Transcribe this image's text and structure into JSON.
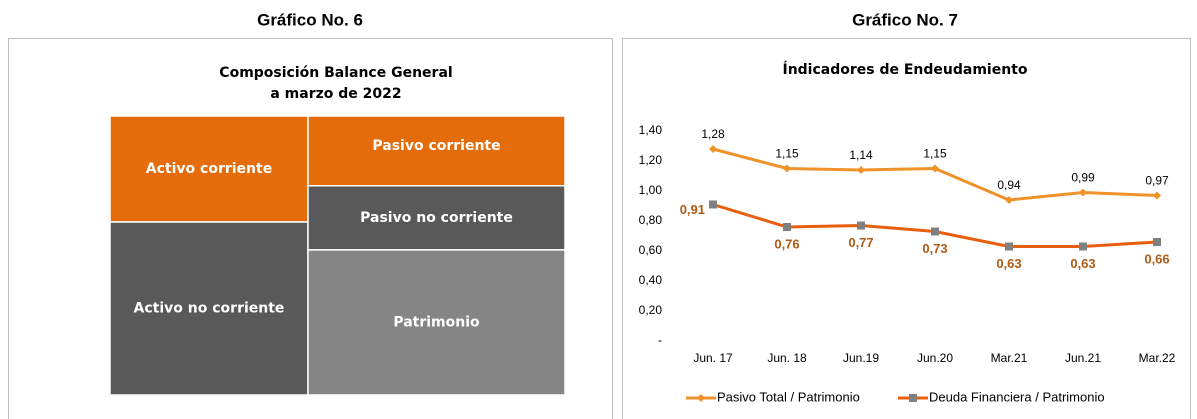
{
  "chart_data": [
    {
      "type": "treemap",
      "heading": "Gráfico No. 6",
      "title": [
        "Composición Balance General",
        "a marzo de 2022"
      ],
      "columns": [
        {
          "categories": [
            "Activo corriente",
            "Activo no corriente"
          ],
          "values": [
            38,
            62
          ],
          "colors": [
            "#e46c0a",
            "#595959"
          ]
        },
        {
          "categories": [
            "Pasivo corriente",
            "Pasivo no corriente",
            "Patrimonio"
          ],
          "values": [
            25,
            23,
            52
          ],
          "colors": [
            "#e46c0a",
            "#595959",
            "#858585"
          ]
        }
      ]
    },
    {
      "type": "line",
      "heading": "Gráfico No. 7",
      "title": "Índicadores  de Endeudamiento",
      "categories": [
        "Jun. 17",
        "Jun. 18",
        "Jun.19",
        "Jun.20",
        "Mar.21",
        "Jun.21",
        "Mar.22"
      ],
      "series": [
        {
          "name": "Pasivo Total / Patrimonio",
          "color": "#f0922a",
          "marker": "diamond",
          "marker_color": "#f0922a",
          "values": [
            1.28,
            1.15,
            1.14,
            1.15,
            0.94,
            0.99,
            0.97
          ],
          "value_labels": [
            "1,28",
            "1,15",
            "1,14",
            "1,15",
            "0,94",
            "0,99",
            "0,97"
          ]
        },
        {
          "name": "Deuda Financiera / Patrimonio",
          "color": "#e8600f",
          "marker": "square",
          "marker_color": "#808080",
          "values": [
            0.91,
            0.76,
            0.77,
            0.73,
            0.63,
            0.63,
            0.66
          ],
          "value_labels": [
            "0,91",
            "0,76",
            "0,77",
            "0,73",
            "0,63",
            "0,63",
            "0,66"
          ]
        }
      ],
      "ylim": [
        0,
        1.4
      ],
      "yticks": [
        {
          "value": 0,
          "label": "-"
        },
        {
          "value": 0.2,
          "label": "0,20"
        },
        {
          "value": 0.4,
          "label": "0,40"
        },
        {
          "value": 0.6,
          "label": "0,60"
        },
        {
          "value": 0.8,
          "label": "0,80"
        },
        {
          "value": 1.0,
          "label": "1,00"
        },
        {
          "value": 1.2,
          "label": "1,20"
        },
        {
          "value": 1.4,
          "label": "1,40"
        }
      ],
      "legend": "bottom"
    }
  ]
}
